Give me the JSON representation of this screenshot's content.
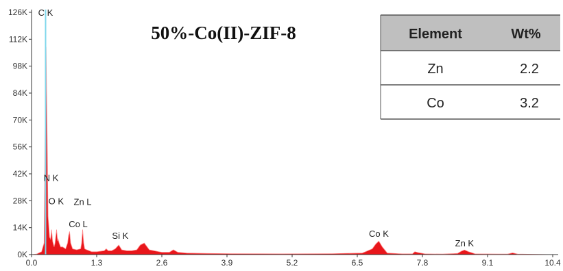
{
  "chart_data": {
    "type": "area",
    "title": "50%-Co(II)-ZIF-8",
    "xlabel": "",
    "ylabel": "",
    "xlim": [
      0,
      10.4
    ],
    "ylim": [
      0,
      126
    ],
    "x_ticks": [
      "0.0",
      "1.3",
      "2.6",
      "3.9",
      "5.2",
      "6.5",
      "7.8",
      "9.1",
      "10.4"
    ],
    "y_ticks": [
      "0K",
      "14K",
      "28K",
      "42K",
      "56K",
      "70K",
      "84K",
      "98K",
      "112K",
      "126K"
    ],
    "y_unit": "K counts",
    "grid": false,
    "fill_color": "#e8161b",
    "outline_color": "#ff8a8a",
    "marker_color": "#7fd7ec",
    "marker_x": 0.28,
    "series": [
      {
        "x": [
          0.0,
          0.1,
          0.2,
          0.25,
          0.27,
          0.29,
          0.31,
          0.33,
          0.36,
          0.38,
          0.4,
          0.42,
          0.45,
          0.47,
          0.5,
          0.52,
          0.53,
          0.55,
          0.58,
          0.62,
          0.68,
          0.72,
          0.74,
          0.76,
          0.78,
          0.82,
          0.9,
          0.98,
          1.0,
          1.02,
          1.04,
          1.06,
          1.1,
          1.2,
          1.3,
          1.45,
          1.49,
          1.53,
          1.6,
          1.67,
          1.74,
          1.8,
          1.9,
          2.0,
          2.1,
          2.17,
          2.25,
          2.35,
          2.6,
          2.75,
          2.83,
          2.92,
          3.1,
          3.5,
          4.0,
          5.0,
          6.0,
          6.6,
          6.8,
          6.87,
          6.93,
          7.0,
          7.1,
          7.4,
          7.6,
          7.65,
          7.72,
          7.85,
          8.2,
          8.5,
          8.58,
          8.64,
          8.72,
          8.85,
          9.3,
          9.5,
          9.6,
          9.7,
          9.9,
          10.4
        ],
        "values": [
          0,
          0.3,
          1.5,
          6,
          60,
          108,
          62,
          20,
          9,
          8,
          13,
          7,
          4,
          6,
          13,
          7,
          8,
          6,
          4,
          4,
          3,
          6,
          10,
          12,
          6,
          3,
          2.5,
          3,
          6,
          13,
          6,
          3,
          2.5,
          1.5,
          1.5,
          2,
          3,
          2,
          2,
          3,
          5,
          2.5,
          2,
          2,
          2.5,
          5,
          6,
          2.5,
          1.2,
          1.2,
          2.5,
          1.2,
          0.8,
          0.6,
          0.5,
          0.4,
          0.5,
          0.8,
          3,
          5.5,
          7,
          4,
          0.8,
          0.4,
          0.4,
          1.5,
          1,
          0.4,
          0.3,
          0.6,
          1.8,
          2.4,
          1.5,
          0.4,
          0.3,
          0.3,
          0.9,
          0.3,
          0.2,
          0
        ]
      }
    ],
    "peak_labels": [
      {
        "text": "C  K",
        "x": 0.28,
        "y": 126
      },
      {
        "text": "N  K",
        "x": 0.39,
        "y": 40
      },
      {
        "text": "O  K",
        "x": 0.49,
        "y": 28
      },
      {
        "text": "Zn L",
        "x": 1.02,
        "y": 27.5
      },
      {
        "text": "Co L",
        "x": 0.93,
        "y": 16
      },
      {
        "text": "Si K",
        "x": 1.77,
        "y": 10
      },
      {
        "text": "Co K",
        "x": 6.93,
        "y": 11
      },
      {
        "text": "Zn K",
        "x": 8.64,
        "y": 6
      }
    ]
  },
  "table": {
    "headers": [
      "Element",
      "Wt%"
    ],
    "rows": [
      {
        "element": "Zn",
        "wt": "2.2"
      },
      {
        "element": "Co",
        "wt": "3.2"
      }
    ],
    "header_bg": "#bfbfbf"
  }
}
